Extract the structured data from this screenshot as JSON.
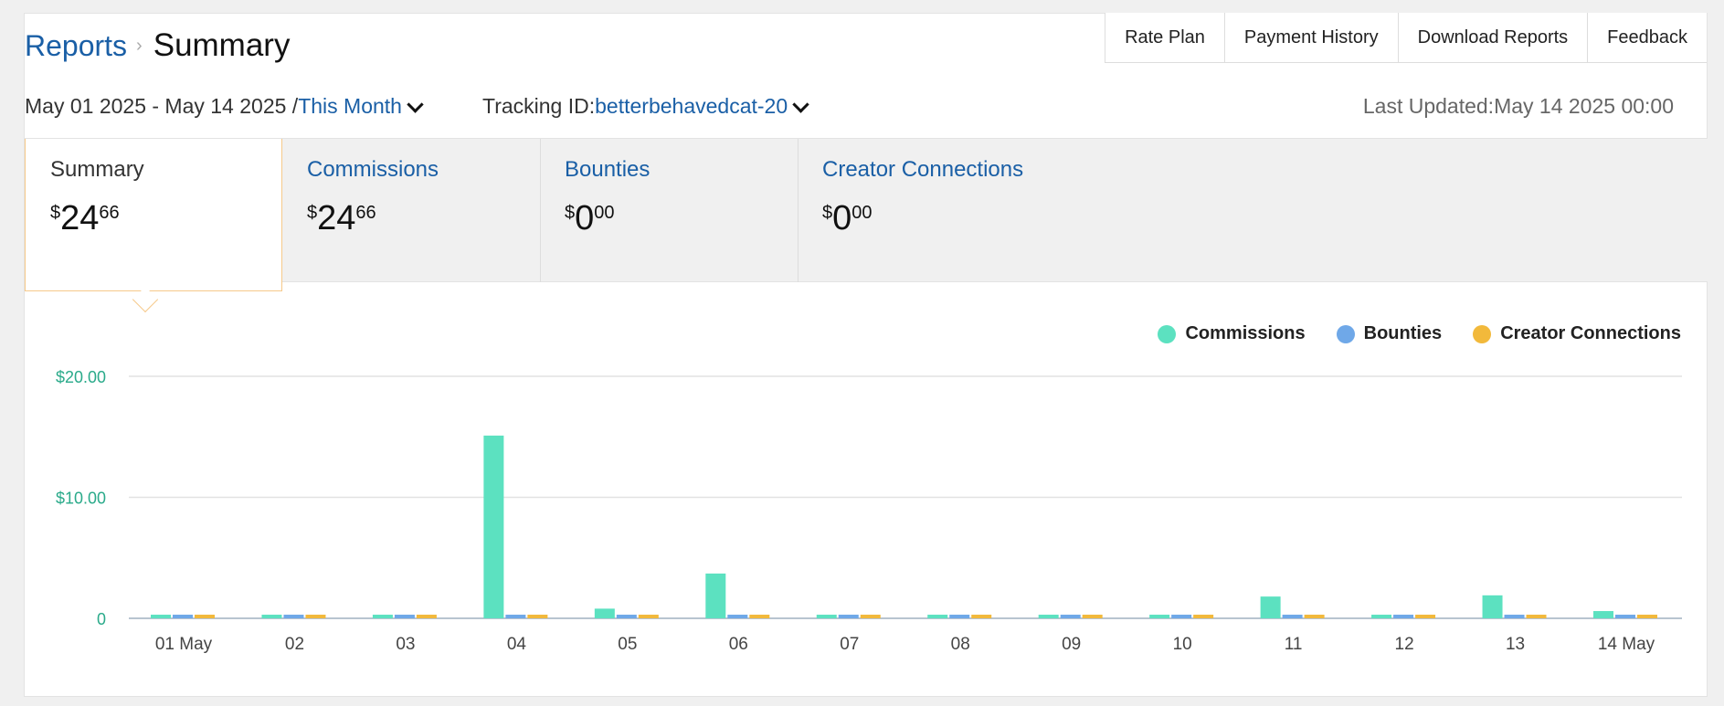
{
  "breadcrumb": {
    "root": "Reports",
    "current": "Summary"
  },
  "toplinks": [
    "Rate Plan",
    "Payment History",
    "Download Reports",
    "Feedback"
  ],
  "filters": {
    "date_range": "May 01 2025 - May 14 2025 /",
    "period": "This Month",
    "tracking_label": "Tracking ID:",
    "tracking_id": "betterbehavedcat-20",
    "last_updated": "Last Updated:May 14 2025 00:00"
  },
  "tabs": [
    {
      "label": "Summary",
      "currency": "$",
      "int": "24",
      "frac": "66",
      "active": true
    },
    {
      "label": "Commissions",
      "currency": "$",
      "int": "24",
      "frac": "66",
      "active": false
    },
    {
      "label": "Bounties",
      "currency": "$",
      "int": "0",
      "frac": "00",
      "active": false
    },
    {
      "label": "Creator Connections",
      "currency": "$",
      "int": "0",
      "frac": "00",
      "active": false
    }
  ],
  "colors": {
    "commissions": "#5ce1c0",
    "bounties": "#6fa8e8",
    "creator_connections": "#f2b93b",
    "link": "#1a5fa6",
    "axis_label": "#2aaa8a"
  },
  "chart_data": {
    "type": "bar",
    "categories": [
      "01 May",
      "02",
      "03",
      "04",
      "05",
      "06",
      "07",
      "08",
      "09",
      "10",
      "11",
      "12",
      "13",
      "14 May"
    ],
    "series": [
      {
        "name": "Commissions",
        "values": [
          0.3,
          0.3,
          0.3,
          15.1,
          0.8,
          3.7,
          0.3,
          0.3,
          0.3,
          0.3,
          1.8,
          0.3,
          1.9,
          0.6
        ]
      },
      {
        "name": "Bounties",
        "values": [
          0.3,
          0.3,
          0.3,
          0.3,
          0.3,
          0.3,
          0.3,
          0.3,
          0.3,
          0.3,
          0.3,
          0.3,
          0.3,
          0.3
        ]
      },
      {
        "name": "Creator Connections",
        "values": [
          0.3,
          0.3,
          0.3,
          0.3,
          0.3,
          0.3,
          0.3,
          0.3,
          0.3,
          0.3,
          0.3,
          0.3,
          0.3,
          0.3
        ]
      }
    ],
    "yticks": [
      {
        "value": 0,
        "label": "0"
      },
      {
        "value": 10,
        "label": "$10.00"
      },
      {
        "value": 20,
        "label": "$20.00"
      }
    ],
    "ylim": [
      0,
      20
    ],
    "grid": true,
    "legend": "top-right"
  }
}
